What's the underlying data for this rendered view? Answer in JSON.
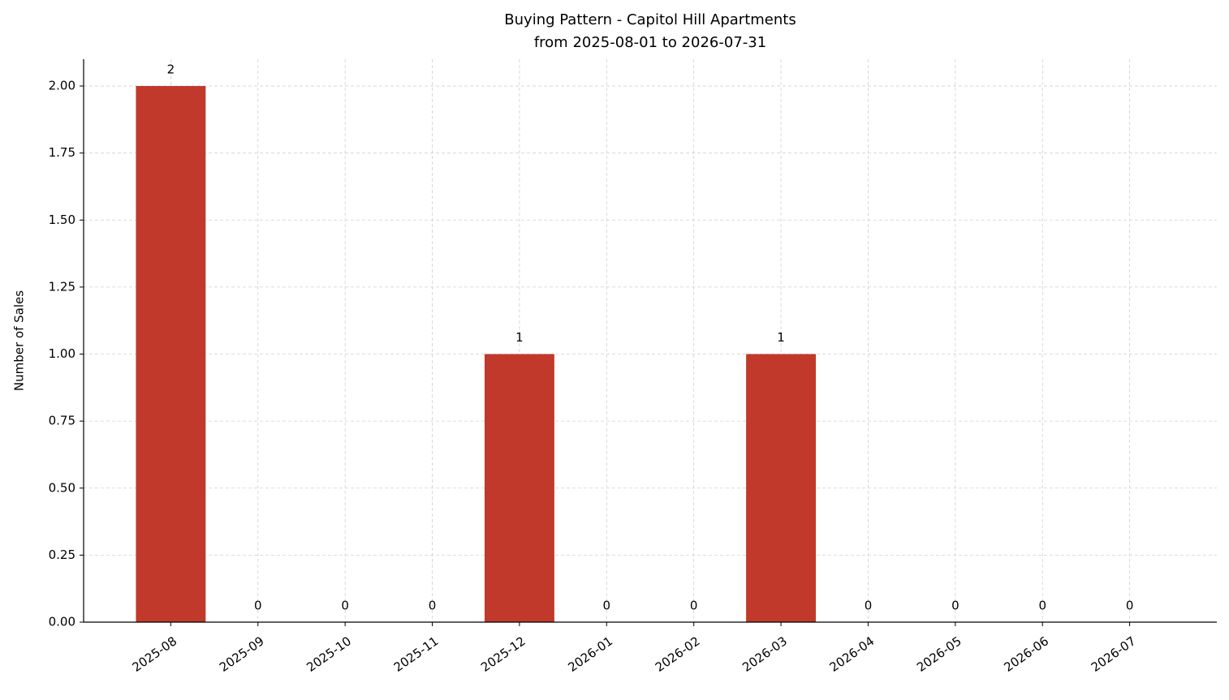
{
  "chart_data": {
    "type": "bar",
    "title": "Buying Pattern - Capitol Hill Apartments",
    "subtitle": "from 2025-08-01 to 2026-07-31",
    "y_label": "Number of Sales",
    "categories": [
      "2025-08",
      "2025-09",
      "2025-10",
      "2025-11",
      "2025-12",
      "2026-01",
      "2026-02",
      "2026-03",
      "2026-04",
      "2026-05",
      "2026-06",
      "2026-07"
    ],
    "values": [
      2,
      0,
      0,
      0,
      1,
      0,
      0,
      1,
      0,
      0,
      0,
      0
    ],
    "color": "#c0392b",
    "ylim": [
      0,
      2.1
    ],
    "yticks": [
      {
        "value": 0,
        "label": "0.00"
      },
      {
        "value": 0.25,
        "label": "0.25"
      },
      {
        "value": 0.5,
        "label": "0.50"
      },
      {
        "value": 0.75,
        "label": "0.75"
      },
      {
        "value": 1,
        "label": "1.00"
      },
      {
        "value": 1.25,
        "label": "1.25"
      },
      {
        "value": 1.5,
        "label": "1.50"
      },
      {
        "value": 1.75,
        "label": "1.75"
      },
      {
        "value": 2,
        "label": "2.00"
      }
    ],
    "grid": true
  }
}
